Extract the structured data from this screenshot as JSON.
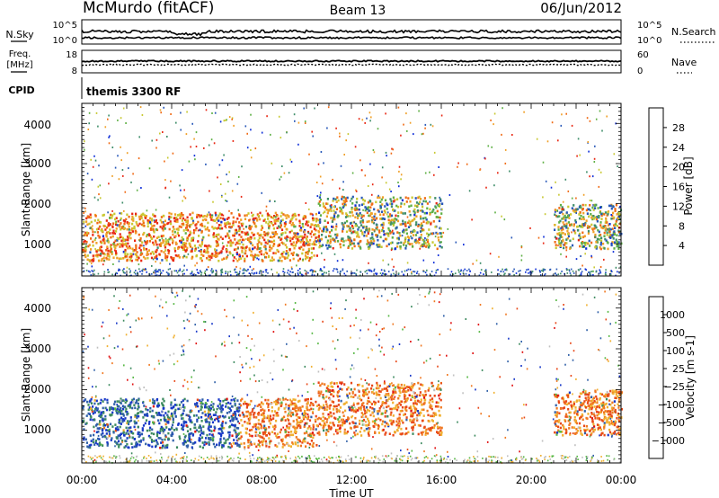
{
  "header": {
    "station": "McMurdo (fitACF)",
    "beam": "Beam 13",
    "date": "06/Jun/2012"
  },
  "top_panels": {
    "nsky_label": "N.Sky",
    "nsky_ticks": [
      "10^5",
      "10^0"
    ],
    "nsearch_label": "N.Search",
    "nsearch_ticks": [
      "10^5",
      "10^0"
    ],
    "freq_label": "Freq.",
    "freq_unit": "[MHz]",
    "freq_ticks": [
      "18",
      "8"
    ],
    "nave_label": "Nave",
    "nave_ticks": [
      "60",
      "0"
    ],
    "cpid_label": "CPID",
    "cpid_value": "themis 3300 RF"
  },
  "chart_data": [
    {
      "type": "heatmap",
      "name": "power",
      "ylabel": "Slant Range [km]",
      "yticks": [
        "1000",
        "2000",
        "3000",
        "4000"
      ],
      "ylim": [
        200,
        4500
      ],
      "xlim": [
        0,
        24
      ],
      "colorbar": {
        "label": "Power [dB]",
        "ticks": [
          "4",
          "8",
          "12",
          "16",
          "20",
          "24",
          "28"
        ],
        "colors": [
          "#1030d8",
          "#2858b8",
          "#3f8e6a",
          "#5fb045",
          "#c8c832",
          "#f0a028",
          "#f06a14",
          "#e82814"
        ]
      },
      "regions": [
        {
          "t0": 0.0,
          "t1": 10.5,
          "r0": 600,
          "r1": 1800,
          "level": "high"
        },
        {
          "t0": 10.5,
          "t1": 16.0,
          "r0": 900,
          "r1": 2200,
          "level": "medium"
        },
        {
          "t0": 21.0,
          "t1": 24.0,
          "r0": 900,
          "r1": 2000,
          "level": "medium"
        }
      ]
    },
    {
      "type": "heatmap",
      "name": "velocity",
      "ylabel": "Slant Range [km]",
      "yticks": [
        "1000",
        "2000",
        "3000",
        "4000"
      ],
      "ylim": [
        200,
        4500
      ],
      "xlim": [
        0,
        24
      ],
      "xticks": [
        "00:00",
        "04:00",
        "08:00",
        "12:00",
        "16:00",
        "20:00",
        "00:00"
      ],
      "xlabel": "Time UT",
      "colorbar": {
        "label": "Velocity [m s-1]",
        "ticks": [
          "1000",
          "500",
          "100",
          "25",
          "−25",
          "−100",
          "−500",
          "−1000"
        ],
        "colors": [
          "#1838c8",
          "#3060a8",
          "#3c8a5e",
          "#58b845",
          "#c0c0c0",
          "#f0b030",
          "#f07820",
          "#e84818",
          "#e01010"
        ]
      }
    }
  ]
}
